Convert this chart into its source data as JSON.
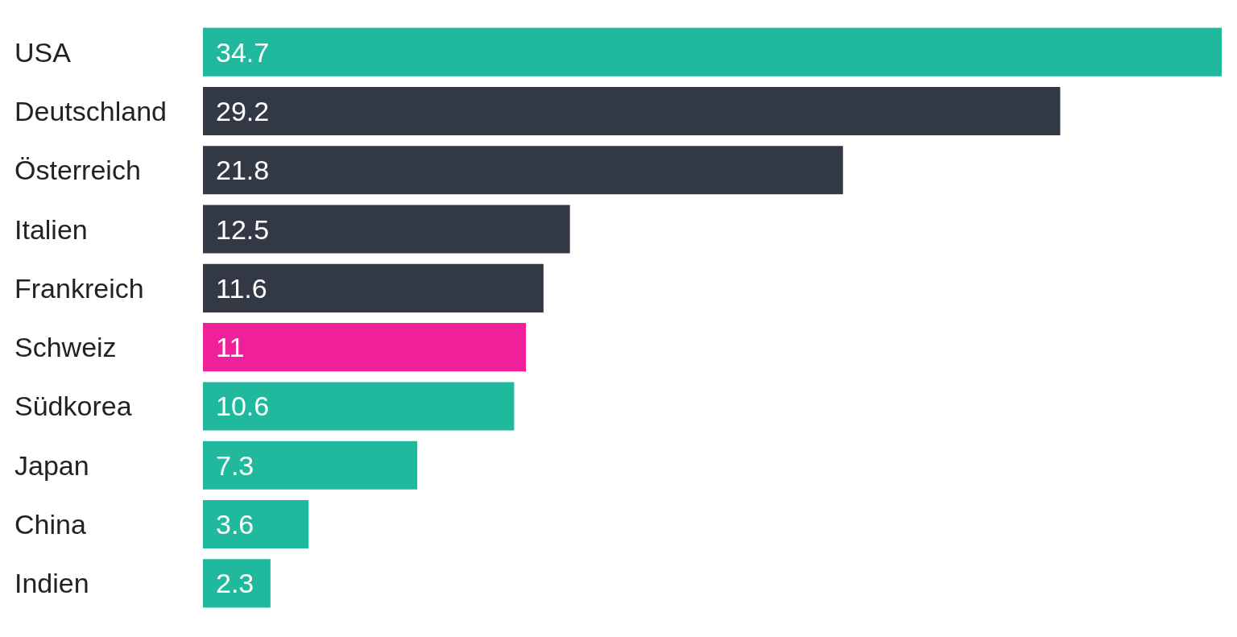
{
  "chart_data": {
    "type": "bar",
    "orientation": "horizontal",
    "categories": [
      "USA",
      "Deutschland",
      "Österreich",
      "Italien",
      "Frankreich",
      "Schweiz",
      "Südkorea",
      "Japan",
      "China",
      "Indien"
    ],
    "values": [
      34.7,
      29.2,
      21.8,
      12.5,
      11.6,
      11,
      10.6,
      7.3,
      3.6,
      2.3
    ],
    "colors": [
      "#21b99d",
      "#333845",
      "#333845",
      "#333845",
      "#333845",
      "#f0209a",
      "#21b99d",
      "#21b99d",
      "#21b99d",
      "#21b99d"
    ],
    "data_labels": true
  }
}
